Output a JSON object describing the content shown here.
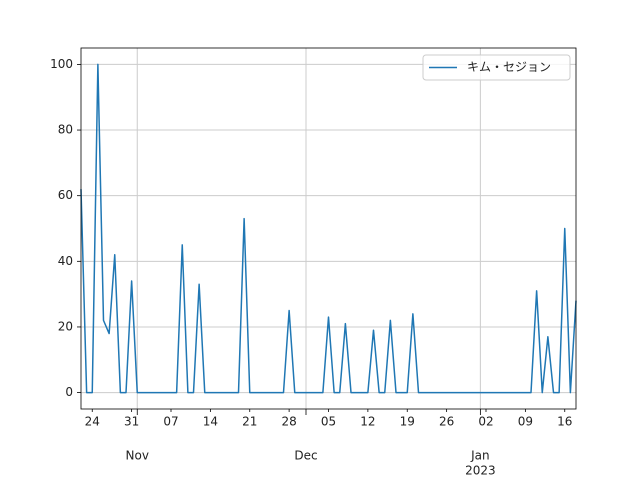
{
  "chart_data": {
    "type": "line",
    "x": [
      "2022-10-22",
      "2022-10-23",
      "2022-10-24",
      "2022-10-25",
      "2022-10-26",
      "2022-10-27",
      "2022-10-28",
      "2022-10-29",
      "2022-10-30",
      "2022-10-31",
      "2022-11-01",
      "2022-11-02",
      "2022-11-03",
      "2022-11-04",
      "2022-11-05",
      "2022-11-06",
      "2022-11-07",
      "2022-11-08",
      "2022-11-09",
      "2022-11-10",
      "2022-11-11",
      "2022-11-12",
      "2022-11-13",
      "2022-11-14",
      "2022-11-15",
      "2022-11-16",
      "2022-11-17",
      "2022-11-18",
      "2022-11-19",
      "2022-11-20",
      "2022-11-21",
      "2022-11-22",
      "2022-11-23",
      "2022-11-24",
      "2022-11-25",
      "2022-11-26",
      "2022-11-27",
      "2022-11-28",
      "2022-11-29",
      "2022-11-30",
      "2022-12-01",
      "2022-12-02",
      "2022-12-03",
      "2022-12-04",
      "2022-12-05",
      "2022-12-06",
      "2022-12-07",
      "2022-12-08",
      "2022-12-09",
      "2022-12-10",
      "2022-12-11",
      "2022-12-12",
      "2022-12-13",
      "2022-12-14",
      "2022-12-15",
      "2022-12-16",
      "2022-12-17",
      "2022-12-18",
      "2022-12-19",
      "2022-12-20",
      "2022-12-21",
      "2022-12-22",
      "2022-12-23",
      "2022-12-24",
      "2022-12-25",
      "2022-12-26",
      "2022-12-27",
      "2022-12-28",
      "2022-12-29",
      "2022-12-30",
      "2022-12-31",
      "2023-01-01",
      "2023-01-02",
      "2023-01-03",
      "2023-01-04",
      "2023-01-05",
      "2023-01-06",
      "2023-01-07",
      "2023-01-08",
      "2023-01-09",
      "2023-01-10",
      "2023-01-11",
      "2023-01-12",
      "2023-01-13",
      "2023-01-14",
      "2023-01-15",
      "2023-01-16",
      "2023-01-17",
      "2023-01-18"
    ],
    "series": [
      {
        "name": "キム・セジョン",
        "color": "#1f77b4",
        "values": [
          62,
          0,
          0,
          100,
          22,
          18,
          42,
          0,
          0,
          34,
          0,
          0,
          0,
          0,
          0,
          0,
          0,
          0,
          45,
          0,
          0,
          33,
          0,
          0,
          0,
          0,
          0,
          0,
          0,
          53,
          0,
          0,
          0,
          0,
          0,
          0,
          0,
          25,
          0,
          0,
          0,
          0,
          0,
          0,
          23,
          0,
          0,
          21,
          0,
          0,
          0,
          0,
          19,
          0,
          0,
          22,
          0,
          0,
          0,
          24,
          0,
          0,
          0,
          0,
          0,
          0,
          0,
          0,
          0,
          0,
          0,
          0,
          0,
          0,
          0,
          0,
          0,
          0,
          0,
          0,
          0,
          31,
          0,
          17,
          0,
          0,
          50,
          0,
          28
        ]
      }
    ],
    "xlim": [
      "2022-10-22",
      "2023-01-18"
    ],
    "xticks": [
      {
        "value": "2022-10-24",
        "label": "24"
      },
      {
        "value": "2022-10-31",
        "label": "31"
      },
      {
        "value": "2022-11-07",
        "label": "07"
      },
      {
        "value": "2022-11-14",
        "label": "14"
      },
      {
        "value": "2022-11-21",
        "label": "21"
      },
      {
        "value": "2022-11-28",
        "label": "28"
      },
      {
        "value": "2022-12-05",
        "label": "05"
      },
      {
        "value": "2022-12-12",
        "label": "12"
      },
      {
        "value": "2022-12-19",
        "label": "19"
      },
      {
        "value": "2022-12-26",
        "label": "26"
      },
      {
        "value": "2023-01-02",
        "label": "02"
      },
      {
        "value": "2023-01-09",
        "label": "09"
      },
      {
        "value": "2023-01-16",
        "label": "16"
      }
    ],
    "xmajorticks": [
      {
        "value": "2022-11-01",
        "label": "Nov"
      },
      {
        "value": "2022-12-01",
        "label": "Dec"
      },
      {
        "value": "2023-01-01",
        "label": "Jan",
        "label2": "2023"
      }
    ],
    "ylim": [
      -5,
      105
    ],
    "yticks": [
      0,
      20,
      40,
      60,
      80,
      100
    ],
    "grid": true,
    "legend": "upper right"
  }
}
